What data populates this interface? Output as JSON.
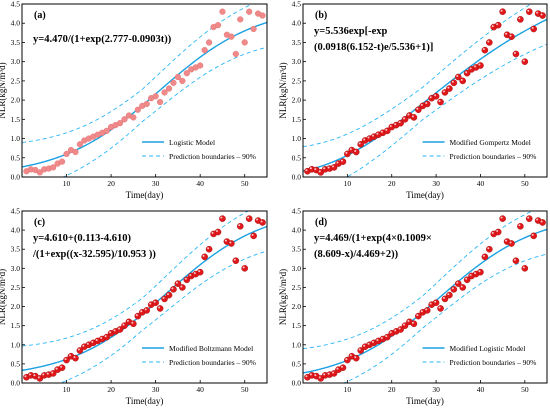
{
  "chart_data": [
    {
      "type": "scatter",
      "panel_label": "(a)",
      "equation_lines": [
        "y=4.470/(1+exp(2.777-0.0903t))"
      ],
      "xlabel": "Time(day)",
      "ylabel": "NLR(kgN/m³d)",
      "xlim": [
        0,
        55
      ],
      "ylim": [
        0,
        4.5
      ],
      "xticks": [
        10,
        20,
        30,
        40,
        50
      ],
      "yticks": [
        0.0,
        0.5,
        1.0,
        1.5,
        2.0,
        2.5,
        3.0,
        3.5,
        4.0,
        4.5
      ],
      "legend_position": "bottom-right",
      "marker_style": "light",
      "model": {
        "kind": "logistic",
        "a": 4.47,
        "b": 2.777,
        "c": 0.0903
      },
      "series": [
        {
          "name": "Logistic Model",
          "style": "solid"
        },
        {
          "name": "Prediction boundaries – 90%",
          "style": "dashed"
        }
      ],
      "observations": {
        "x": [
          1,
          2,
          3,
          4,
          5,
          6,
          7,
          8,
          9,
          10,
          11,
          12,
          13,
          14,
          15,
          16,
          17,
          18,
          19,
          20,
          21,
          22,
          23,
          24,
          25,
          26,
          27,
          28,
          29,
          30,
          31,
          32,
          33,
          34,
          35,
          36,
          37,
          38,
          39,
          40,
          41,
          42,
          43,
          44,
          45,
          46,
          47,
          48,
          49,
          50,
          51,
          52,
          53,
          54
        ],
        "y": [
          0.15,
          0.2,
          0.18,
          0.12,
          0.2,
          0.22,
          0.25,
          0.35,
          0.4,
          0.6,
          0.7,
          0.65,
          0.85,
          0.95,
          1.0,
          1.05,
          1.1,
          1.15,
          1.2,
          1.3,
          1.35,
          1.4,
          1.5,
          1.6,
          1.55,
          1.75,
          1.85,
          1.9,
          2.05,
          2.1,
          1.95,
          2.2,
          2.3,
          2.45,
          2.6,
          2.5,
          2.7,
          2.8,
          2.85,
          2.9,
          3.3,
          3.5,
          3.9,
          3.95,
          4.3,
          3.7,
          3.65,
          3.2,
          4.1,
          3.5,
          4.3,
          3.85,
          4.25,
          4.2
        ]
      }
    },
    {
      "type": "scatter",
      "panel_label": "(b)",
      "equation_lines": [
        "y=5.536exp[-exp",
        "(0.0918(6.152-t)e/5.536+1)]"
      ],
      "xlabel": "Time(day)",
      "ylabel": "NLR(kgN/m³d)",
      "xlim": [
        0,
        55
      ],
      "ylim": [
        0,
        4.5
      ],
      "xticks": [
        10,
        20,
        30,
        40,
        50
      ],
      "yticks": [
        0.0,
        0.5,
        1.0,
        1.5,
        2.0,
        2.5,
        3.0,
        3.5,
        4.0,
        4.5
      ],
      "legend_position": "bottom-right",
      "marker_style": "red",
      "model": {
        "kind": "gompertz",
        "a": 5.536,
        "mu": 0.0918,
        "lambda": 6.152
      },
      "series": [
        {
          "name": "Modified Gompertz Model",
          "style": "solid"
        },
        {
          "name": "Prediction boundaries – 90%",
          "style": "dashed"
        }
      ],
      "observations": {
        "x": [
          1,
          2,
          3,
          4,
          5,
          6,
          7,
          8,
          9,
          10,
          11,
          12,
          13,
          14,
          15,
          16,
          17,
          18,
          19,
          20,
          21,
          22,
          23,
          24,
          25,
          26,
          27,
          28,
          29,
          30,
          31,
          32,
          33,
          34,
          35,
          36,
          37,
          38,
          39,
          40,
          41,
          42,
          43,
          44,
          45,
          46,
          47,
          48,
          49,
          50,
          51,
          52,
          53,
          54
        ],
        "y": [
          0.15,
          0.2,
          0.18,
          0.12,
          0.2,
          0.22,
          0.25,
          0.35,
          0.4,
          0.6,
          0.7,
          0.65,
          0.85,
          0.95,
          1.0,
          1.05,
          1.1,
          1.15,
          1.2,
          1.3,
          1.35,
          1.4,
          1.5,
          1.6,
          1.55,
          1.75,
          1.85,
          1.9,
          2.05,
          2.1,
          1.95,
          2.2,
          2.3,
          2.45,
          2.6,
          2.5,
          2.7,
          2.8,
          2.85,
          2.9,
          3.3,
          3.5,
          3.9,
          3.95,
          4.3,
          3.7,
          3.65,
          3.2,
          4.1,
          3.0,
          4.3,
          3.85,
          4.25,
          4.2
        ]
      }
    },
    {
      "type": "scatter",
      "panel_label": "(c)",
      "equation_lines": [
        "y=4.610+(0.113-4.610)",
        "/(1+exp((x-32.595)/10.953 ))"
      ],
      "xlabel": "Time(day)",
      "ylabel": "NLR(kgN/m³d)",
      "xlim": [
        0,
        55
      ],
      "ylim": [
        0,
        4.5
      ],
      "xticks": [
        10,
        20,
        30,
        40,
        50
      ],
      "yticks": [
        0.0,
        0.5,
        1.0,
        1.5,
        2.0,
        2.5,
        3.0,
        3.5,
        4.0,
        4.5
      ],
      "legend_position": "bottom-right",
      "marker_style": "red",
      "model": {
        "kind": "boltzmann",
        "a1": 0.113,
        "a2": 4.61,
        "x0": 32.595,
        "dx": 10.953
      },
      "series": [
        {
          "name": "Modified Boltzmann Model",
          "style": "solid"
        },
        {
          "name": "Prediction boundaries – 90%",
          "style": "dashed"
        }
      ],
      "observations": {
        "x": [
          1,
          2,
          3,
          4,
          5,
          6,
          7,
          8,
          9,
          10,
          11,
          12,
          13,
          14,
          15,
          16,
          17,
          18,
          19,
          20,
          21,
          22,
          23,
          24,
          25,
          26,
          27,
          28,
          29,
          30,
          31,
          32,
          33,
          34,
          35,
          36,
          37,
          38,
          39,
          40,
          41,
          42,
          43,
          44,
          45,
          46,
          47,
          48,
          49,
          50,
          51,
          52,
          53,
          54
        ],
        "y": [
          0.15,
          0.2,
          0.18,
          0.12,
          0.2,
          0.22,
          0.25,
          0.35,
          0.4,
          0.6,
          0.7,
          0.65,
          0.85,
          0.95,
          1.0,
          1.05,
          1.1,
          1.15,
          1.2,
          1.3,
          1.35,
          1.4,
          1.5,
          1.6,
          1.55,
          1.75,
          1.85,
          1.9,
          2.05,
          2.1,
          1.95,
          2.2,
          2.3,
          2.45,
          2.6,
          2.5,
          2.7,
          2.8,
          2.85,
          2.9,
          3.3,
          3.5,
          3.9,
          3.95,
          4.3,
          3.7,
          3.65,
          3.2,
          4.1,
          3.0,
          4.3,
          3.85,
          4.25,
          4.2
        ]
      }
    },
    {
      "type": "scatter",
      "panel_label": "(d)",
      "equation_lines": [
        "y=4.469/(1+exp(4×0.1009×",
        "(8.609-x)/4.469+2))"
      ],
      "xlabel": "Time(day)",
      "ylabel": "NLR(kgN/m³d)",
      "xlim": [
        0,
        55
      ],
      "ylim": [
        0,
        4.5
      ],
      "xticks": [
        10,
        20,
        30,
        40,
        50
      ],
      "yticks": [
        0.0,
        0.5,
        1.0,
        1.5,
        2.0,
        2.5,
        3.0,
        3.5,
        4.0,
        4.5
      ],
      "legend_position": "bottom-right",
      "marker_style": "red",
      "model": {
        "kind": "modlogistic",
        "a": 4.469,
        "mu": 0.1009,
        "lambda": 8.609
      },
      "series": [
        {
          "name": "Modified Logistic Model",
          "style": "solid"
        },
        {
          "name": "Prediction boundaries – 90%",
          "style": "dashed"
        }
      ],
      "observations": {
        "x": [
          1,
          2,
          3,
          4,
          5,
          6,
          7,
          8,
          9,
          10,
          11,
          12,
          13,
          14,
          15,
          16,
          17,
          18,
          19,
          20,
          21,
          22,
          23,
          24,
          25,
          26,
          27,
          28,
          29,
          30,
          31,
          32,
          33,
          34,
          35,
          36,
          37,
          38,
          39,
          40,
          41,
          42,
          43,
          44,
          45,
          46,
          47,
          48,
          49,
          50,
          51,
          52,
          53,
          54
        ],
        "y": [
          0.15,
          0.2,
          0.18,
          0.12,
          0.2,
          0.22,
          0.25,
          0.35,
          0.4,
          0.6,
          0.7,
          0.65,
          0.85,
          0.95,
          1.0,
          1.05,
          1.1,
          1.15,
          1.2,
          1.3,
          1.35,
          1.4,
          1.5,
          1.6,
          1.55,
          1.75,
          1.85,
          1.9,
          2.05,
          2.1,
          1.95,
          2.2,
          2.3,
          2.45,
          2.6,
          2.5,
          2.7,
          2.8,
          2.85,
          2.9,
          3.3,
          3.5,
          3.9,
          3.95,
          4.3,
          3.7,
          3.65,
          3.2,
          4.1,
          3.0,
          4.3,
          3.85,
          4.25,
          4.2
        ]
      }
    }
  ],
  "colors": {
    "model_line": "#1ba1e2",
    "bound_line": "#29b6f6",
    "marker_red": "#e0181c",
    "marker_light": "#f08a8a",
    "axis": "#000000"
  }
}
